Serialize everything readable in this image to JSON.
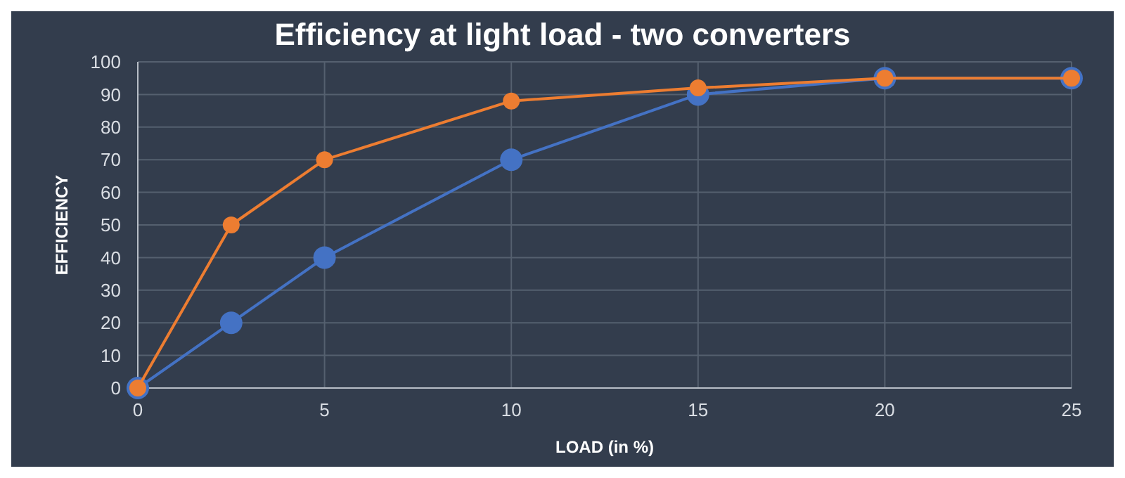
{
  "chart_data": {
    "type": "line",
    "title": "Efficiency at light load - two converters",
    "xlabel": "LOAD (in %)",
    "ylabel": "EFFICIENCY",
    "x": [
      0,
      2.5,
      5,
      10,
      15,
      20,
      25
    ],
    "series": [
      {
        "color": "#4472c4",
        "values": [
          0,
          20,
          40,
          70,
          90,
          95,
          95
        ]
      },
      {
        "color": "#ed7d31",
        "values": [
          0,
          50,
          70,
          88,
          92,
          95,
          95
        ]
      }
    ],
    "xlim": [
      0,
      25
    ],
    "xticks": [
      0,
      5,
      10,
      15,
      20,
      25
    ],
    "ylim": [
      0,
      100
    ],
    "yticks": [
      0,
      10,
      20,
      30,
      40,
      50,
      60,
      70,
      80,
      90,
      100
    ],
    "grid": true,
    "marker": "circle",
    "line_style": "solid"
  }
}
